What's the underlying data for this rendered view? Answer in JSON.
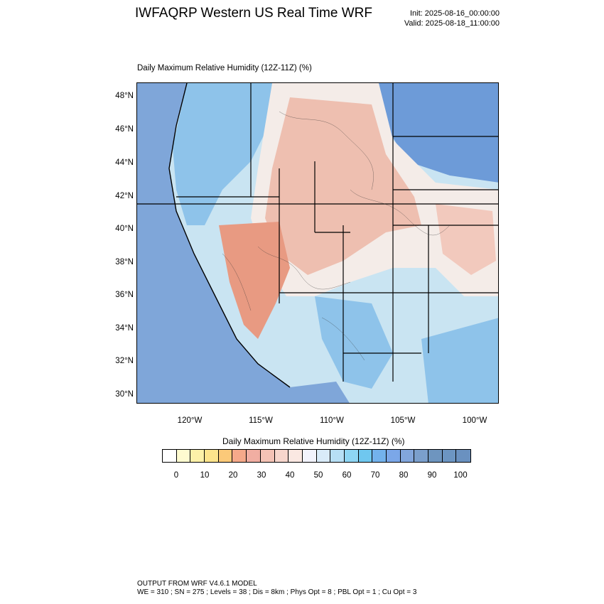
{
  "header": {
    "title": "IWFAQRP Western US Real Time WRF",
    "init": "Init: 2025-08-16_00:00:00",
    "valid": "Valid: 2025-08-18_11:00:00"
  },
  "map": {
    "subtitle": "Daily Maximum Relative Humidity (12Z-11Z)   (%)",
    "lat_labels": [
      "48°N",
      "46°N",
      "44°N",
      "42°N",
      "40°N",
      "38°N",
      "36°N",
      "34°N",
      "32°N",
      "30°N"
    ],
    "lon_labels": [
      "120°W",
      "115°W",
      "110°W",
      "105°W",
      "100°W"
    ],
    "colors": {
      "ocean": "#7fa6d9",
      "very_moist": "#6d9bd8",
      "moist": "#8ec3ea",
      "moderate": "#c9e4f2",
      "neutral": "#f4ece8",
      "dry": "#eebfb0",
      "very_dry": "#e89a82",
      "boundary": "#000000"
    }
  },
  "legend": {
    "title": "Daily Maximum Relative Humidity (12Z-11Z)  (%)",
    "tick_labels": [
      "0",
      "10",
      "20",
      "30",
      "40",
      "50",
      "60",
      "70",
      "80",
      "90",
      "100"
    ],
    "colors": [
      "#ffffff",
      "#fefbd0",
      "#fdf1a8",
      "#fde48c",
      "#fbc979",
      "#f5a98a",
      "#f1aea2",
      "#f4c2b5",
      "#f7d6cc",
      "#fae8e2",
      "#f2f3fc",
      "#d9ebf9",
      "#b7dff5",
      "#8ed5f3",
      "#6fc7ef",
      "#73b2ec",
      "#7ba7e8",
      "#82a6dc",
      "#7b9fcc",
      "#6e95bf",
      "#6c95c2",
      "#6a91c0"
    ]
  },
  "footer": {
    "line1": "OUTPUT FROM WRF V4.6.1 MODEL",
    "line2": "WE = 310 ; SN = 275 ; Levels = 38 ; Dis = 8km ; Phys Opt = 8 ; PBL Opt = 1 ; Cu Opt = 3"
  }
}
